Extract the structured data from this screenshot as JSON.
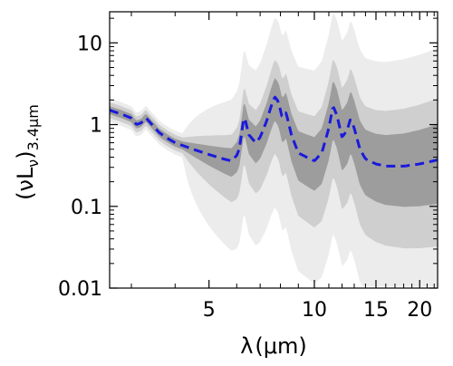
{
  "chart_data": {
    "type": "line",
    "title": "",
    "xlabel": "λ (μm)",
    "xlabel_parts": {
      "symbol": "λ",
      "unit": "(μm)"
    },
    "ylabel": "(νLν)3.4μm",
    "ylabel_parts": {
      "main": "(νL",
      "nu_sub": "ν",
      "close": ")",
      "sub": "3.4μm"
    },
    "x_scale": "log",
    "y_scale": "log",
    "xlim": [
      2.6,
      22.5
    ],
    "ylim": [
      0.01,
      24
    ],
    "x_major_ticks": [
      5,
      10,
      15,
      20
    ],
    "x_tick_labels": [
      "5",
      "10",
      "15",
      "20"
    ],
    "x_minor_ticks": [
      3,
      4,
      6,
      7,
      8,
      9,
      11,
      12,
      13,
      14,
      16,
      17,
      18,
      19,
      21,
      22
    ],
    "y_major_ticks": [
      0.01,
      0.1,
      1,
      10
    ],
    "y_tick_labels": [
      "0.01",
      "0.1",
      "1",
      "10"
    ],
    "grid": false,
    "legend": "none",
    "colors": {
      "median": "#1a1adc",
      "band_inner": "#8c8c8c",
      "band_outer": "#cfcfcf",
      "band_faint": "#ececec"
    },
    "series": [
      {
        "style": "dashed",
        "x": [
          2.6,
          2.8,
          3.0,
          3.1,
          3.2,
          3.3,
          3.4,
          3.5,
          3.6,
          3.8,
          4.0,
          4.5,
          5.0,
          5.5,
          5.8,
          6.0,
          6.1,
          6.2,
          6.3,
          6.5,
          6.8,
          7.0,
          7.3,
          7.5,
          7.7,
          7.9,
          8.1,
          8.3,
          8.6,
          9.0,
          9.5,
          10.0,
          10.5,
          11.0,
          11.3,
          11.6,
          12.0,
          12.4,
          12.7,
          13.0,
          13.5,
          14.0,
          15.0,
          16.0,
          17.0,
          18.0,
          20.0,
          22.5
        ],
        "y": [
          1.5,
          1.35,
          1.2,
          1.0,
          1.05,
          1.22,
          1.05,
          0.92,
          0.8,
          0.68,
          0.6,
          0.5,
          0.43,
          0.38,
          0.36,
          0.42,
          0.5,
          0.8,
          1.3,
          0.75,
          0.6,
          0.7,
          1.1,
          1.6,
          2.2,
          1.9,
          1.2,
          1.4,
          0.75,
          0.45,
          0.4,
          0.36,
          0.45,
          0.9,
          1.7,
          1.3,
          0.7,
          0.85,
          1.2,
          0.9,
          0.5,
          0.38,
          0.33,
          0.31,
          0.31,
          0.31,
          0.33,
          0.37
        ]
      }
    ]
  }
}
